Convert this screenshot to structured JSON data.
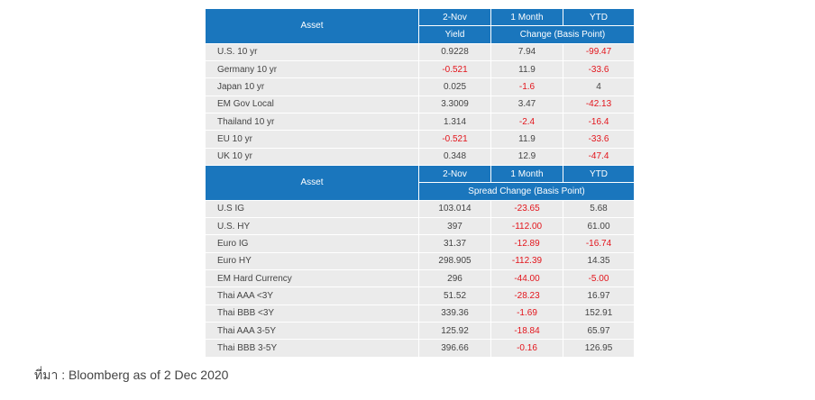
{
  "table1": {
    "header": {
      "asset": "Asset",
      "date": "2-Nov",
      "month": "1 Month",
      "ytd": "YTD",
      "sub1": "Yield",
      "sub2": "Change (Basis Point)"
    },
    "rows": [
      [
        "U.S. 10 yr",
        "0.9228",
        "7.94",
        "-99.47"
      ],
      [
        "Germany 10 yr",
        "-0.521",
        "11.9",
        "-33.6"
      ],
      [
        "Japan 10 yr",
        "0.025",
        "-1.6",
        "4"
      ],
      [
        "EM Gov Local",
        "3.3009",
        "3.47",
        "-42.13"
      ],
      [
        "Thailand 10 yr",
        "1.314",
        "-2.4",
        "-16.4"
      ],
      [
        "EU 10 yr",
        "-0.521",
        "11.9",
        "-33.6"
      ],
      [
        "UK 10 yr",
        "0.348",
        "12.9",
        "-47.4"
      ]
    ]
  },
  "table2": {
    "header": {
      "asset": "Asset",
      "date": "2-Nov",
      "month": "1 Month",
      "ytd": "YTD",
      "sub2": "Spread Change (Basis Point)"
    },
    "rows": [
      [
        "U.S IG",
        "103.014",
        "-23.65",
        "5.68"
      ],
      [
        "U.S. HY",
        "397",
        "-112.00",
        "61.00"
      ],
      [
        "Euro IG",
        "31.37",
        "-12.89",
        "-16.74"
      ],
      [
        "Euro HY",
        "298.905",
        "-112.39",
        "14.35"
      ],
      [
        "EM Hard Currency",
        "296",
        "-44.00",
        "-5.00"
      ],
      [
        "Thai AAA <3Y",
        "51.52",
        "-28.23",
        "16.97"
      ],
      [
        "Thai BBB <3Y",
        "339.36",
        "-1.69",
        "152.91"
      ],
      [
        "Thai AAA 3-5Y",
        "125.92",
        "-18.84",
        "65.97"
      ],
      [
        "Thai BBB 3-5Y",
        "396.66",
        "-0.16",
        "126.95"
      ]
    ]
  },
  "source": "ที่มา : Bloomberg as of 2 Dec 2020"
}
